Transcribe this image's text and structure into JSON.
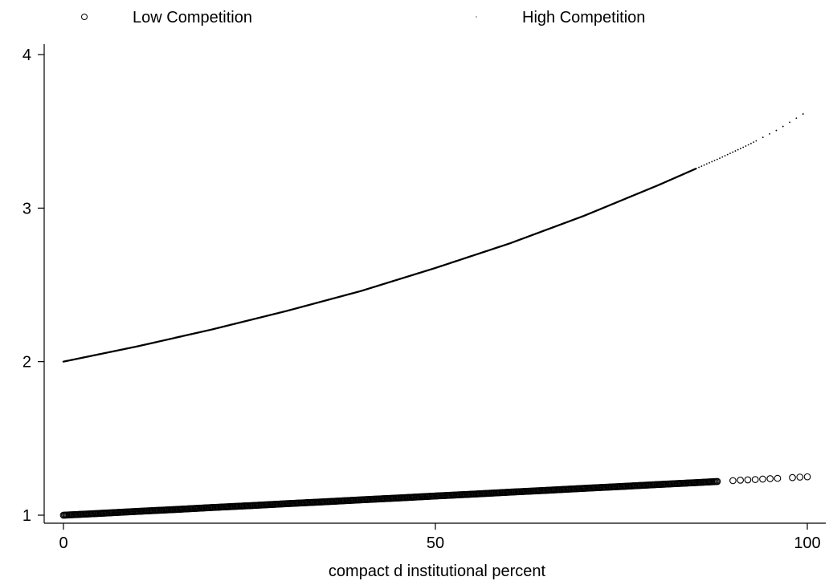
{
  "chart_data": {
    "type": "scatter",
    "title": "",
    "xlabel": "compact d institutional percent",
    "ylabel": "",
    "xlim": [
      0,
      100
    ],
    "ylim": [
      1,
      4
    ],
    "xticks": [
      0,
      50,
      100
    ],
    "yticks": [
      1,
      2,
      3,
      4
    ],
    "grid": false,
    "legend_position": "top",
    "series": [
      {
        "name": "Low Competition",
        "marker": "hollow-circle",
        "color": "#000000",
        "points": [
          [
            0,
            1.0
          ],
          [
            5,
            1.012
          ],
          [
            10,
            1.025
          ],
          [
            15,
            1.037
          ],
          [
            20,
            1.05
          ],
          [
            25,
            1.062
          ],
          [
            30,
            1.075
          ],
          [
            35,
            1.087
          ],
          [
            40,
            1.1
          ],
          [
            45,
            1.112
          ],
          [
            50,
            1.125
          ],
          [
            55,
            1.137
          ],
          [
            60,
            1.15
          ],
          [
            65,
            1.162
          ],
          [
            70,
            1.175
          ],
          [
            75,
            1.187
          ],
          [
            80,
            1.2
          ],
          [
            85,
            1.212
          ],
          [
            90,
            1.225
          ],
          [
            91,
            1.228
          ],
          [
            92,
            1.23
          ],
          [
            93,
            1.232
          ],
          [
            94,
            1.235
          ],
          [
            95,
            1.238
          ],
          [
            96,
            1.24
          ],
          [
            98,
            1.245
          ],
          [
            99,
            1.248
          ],
          [
            100,
            1.25
          ]
        ]
      },
      {
        "name": "High Competition",
        "marker": "dot",
        "color": "#000000",
        "points": [
          [
            0,
            2.0
          ],
          [
            10,
            2.1
          ],
          [
            20,
            2.21
          ],
          [
            30,
            2.33
          ],
          [
            40,
            2.46
          ],
          [
            50,
            2.61
          ],
          [
            60,
            2.77
          ],
          [
            70,
            2.95
          ],
          [
            80,
            3.15
          ],
          [
            88,
            3.32
          ],
          [
            92,
            3.41
          ],
          [
            96,
            3.51
          ],
          [
            100,
            3.63
          ]
        ]
      }
    ]
  }
}
